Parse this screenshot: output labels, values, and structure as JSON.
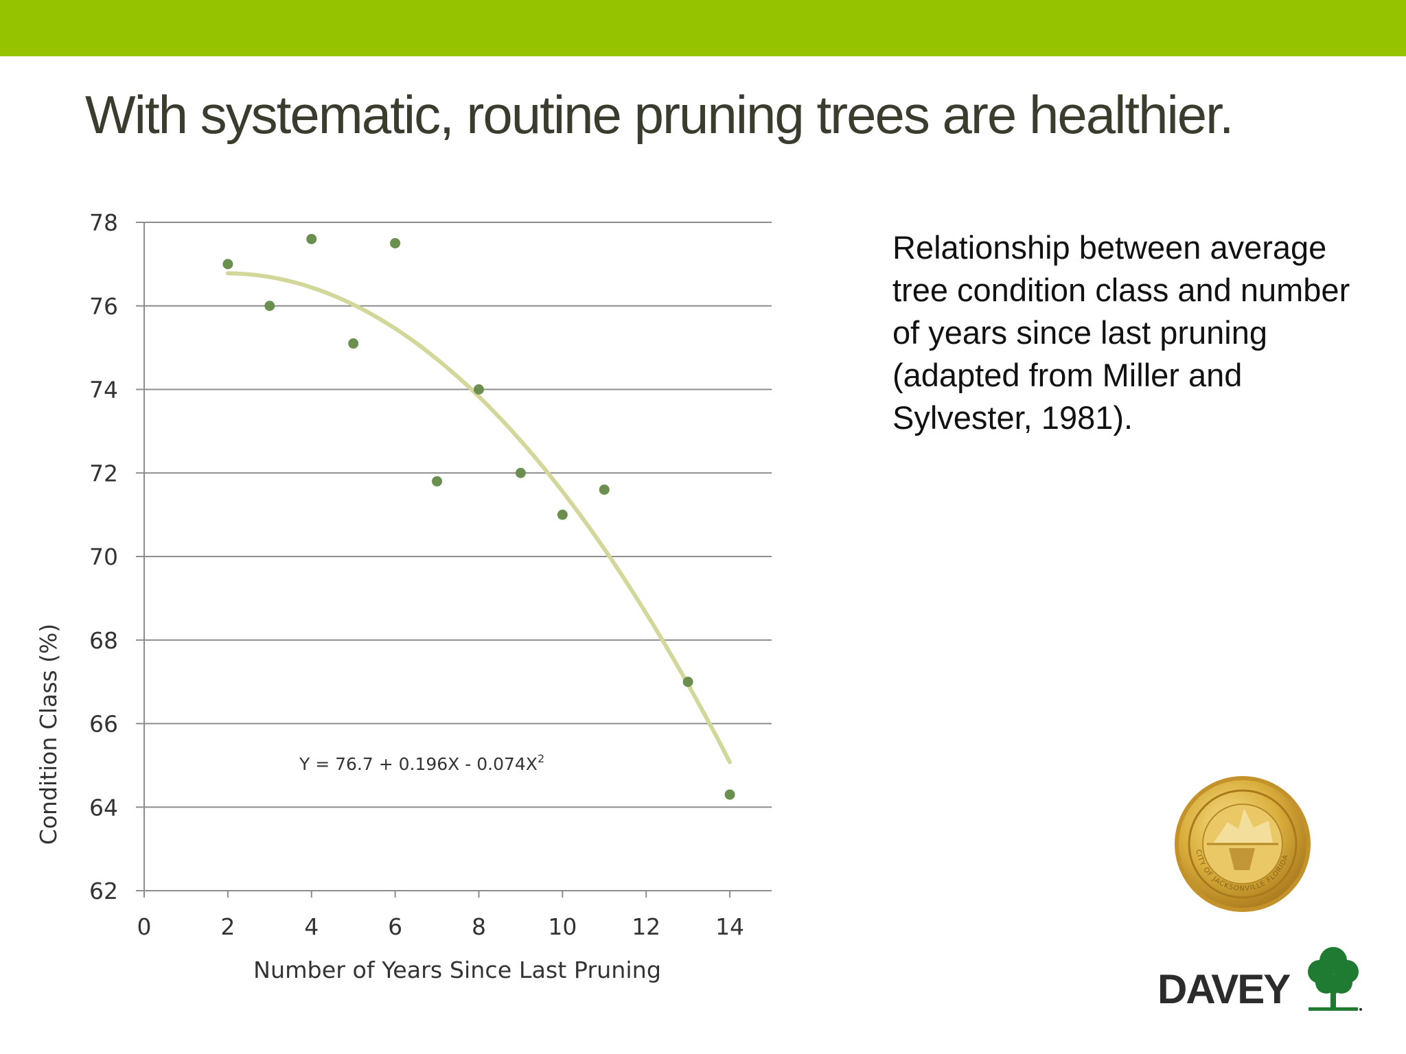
{
  "slide": {
    "title": "With systematic, routine pruning trees are healthier.",
    "caption": "Relationship between average tree condition class and number of years since last pruning (adapted from Miller and Sylvester, 1981).",
    "accent_color": "#96c300",
    "title_color": "#3b3b2e"
  },
  "seal": {
    "text": "CITY OF JACKSONVILLE FLORIDA",
    "icon": "city-seal-icon"
  },
  "logo": {
    "text": "DAVEY",
    "icon": "davey-tree-logo-icon"
  },
  "chart_data": {
    "type": "scatter",
    "title": "",
    "xlabel": "Number of Years Since Last Pruning",
    "ylabel": "Condition Class (%)",
    "xlim": [
      0,
      15
    ],
    "ylim": [
      62,
      78
    ],
    "x_ticks": [
      0,
      2,
      4,
      6,
      8,
      10,
      12,
      14
    ],
    "y_ticks": [
      62,
      64,
      66,
      68,
      70,
      72,
      74,
      76,
      78
    ],
    "grid": "horizontal",
    "point_color": "#6b8f4e",
    "trend_color": "#d3d89a",
    "series": [
      {
        "x": [
          2,
          3,
          4,
          5,
          6,
          7,
          8,
          9,
          10,
          11,
          13,
          14
        ],
        "y": [
          77.0,
          76.0,
          77.6,
          75.1,
          77.5,
          71.8,
          74.0,
          72.0,
          71.0,
          71.6,
          67.0,
          64.3
        ]
      }
    ],
    "trendline": {
      "equation": "Y = 76.7 + 0.196X  -  0.074X",
      "equation_superscript": "2",
      "intercept": 76.7,
      "linear": 0.196,
      "quadratic": -0.074,
      "x_range": [
        2,
        14
      ]
    }
  }
}
